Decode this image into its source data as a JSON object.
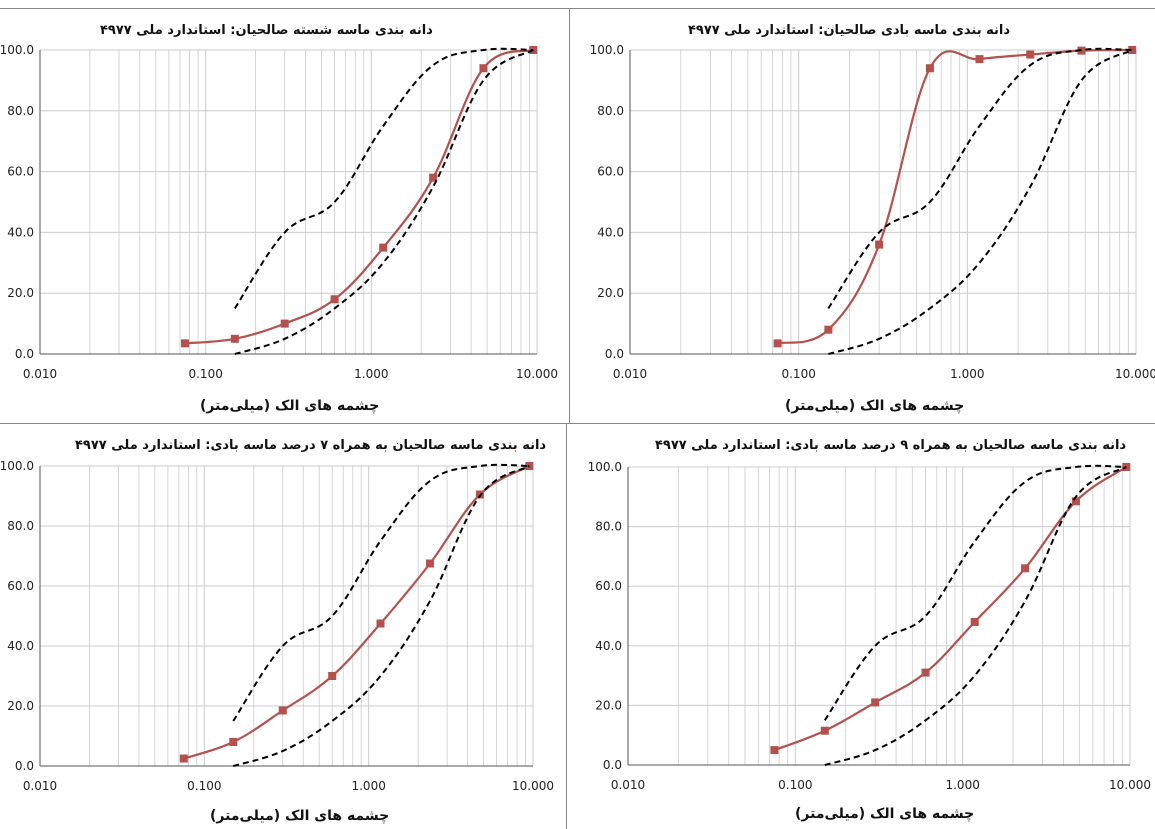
{
  "colors": {
    "grading": "#b5514c",
    "limits": "#000000",
    "grid": "#cccccc"
  },
  "chart_data": [
    {
      "type": "line",
      "title": "دانه بندی ماسه  شسته صالحیان: استاندارد ملی ۴۹۷۷",
      "xlabel": "چشمه های الک (میلی‌متر)",
      "ylabel": "",
      "xscale": "log",
      "xlim": [
        0.01,
        10
      ],
      "ylim": [
        0,
        100
      ],
      "xticks": [
        "0.010",
        "0.100",
        "1.000",
        "10.000"
      ],
      "yticks": [
        "0.0",
        "20.0",
        "40.0",
        "60.0",
        "80.0",
        "100.0"
      ],
      "series": [
        {
          "x": [
            0.075,
            0.15,
            0.3,
            0.6,
            1.18,
            2.36,
            4.75,
            9.5
          ],
          "y": [
            3.5,
            5,
            10,
            18,
            35,
            58,
            94,
            100
          ]
        },
        {
          "x": [
            0.15,
            0.3,
            0.6,
            1.18,
            2.36,
            4.75,
            9.5
          ],
          "y": [
            15,
            40,
            50,
            75,
            95,
            100,
            100
          ],
          "style": "dashed"
        },
        {
          "x": [
            0.15,
            0.3,
            0.6,
            1.18,
            2.36,
            4.75,
            9.5
          ],
          "y": [
            0,
            5,
            15,
            30,
            55,
            90,
            100
          ],
          "style": "dashed"
        }
      ]
    },
    {
      "type": "line",
      "title": "دانه بندی ماسه  بادی صالحیان: استاندارد ملی ۴۹۷۷",
      "xlabel": "چشمه های الک (میلی‌متر)",
      "ylabel": "",
      "xscale": "log",
      "xlim": [
        0.01,
        10
      ],
      "ylim": [
        0,
        100
      ],
      "xticks": [
        "0.010",
        "0.100",
        "1.000",
        "10.000"
      ],
      "yticks": [
        "0.0",
        "20.0",
        "40.0",
        "60.0",
        "80.0",
        "100.0"
      ],
      "series": [
        {
          "x": [
            0.075,
            0.15,
            0.3,
            0.6,
            1.18,
            2.36,
            4.75,
            9.5
          ],
          "y": [
            3.5,
            8,
            36,
            94,
            97,
            98.5,
            99.8,
            100
          ]
        },
        {
          "x": [
            0.15,
            0.3,
            0.6,
            1.18,
            2.36,
            4.75,
            9.5
          ],
          "y": [
            15,
            40,
            50,
            75,
            95,
            100,
            100
          ],
          "style": "dashed"
        },
        {
          "x": [
            0.15,
            0.3,
            0.6,
            1.18,
            2.36,
            4.75,
            9.5
          ],
          "y": [
            0,
            5,
            15,
            30,
            55,
            90,
            100
          ],
          "style": "dashed"
        }
      ]
    },
    {
      "type": "line",
      "title": "دانه بندی ماسه صالحیان به همراه ۷ درصد ماسه بادی: استاندارد ملی ۴۹۷۷",
      "xlabel": "چشمه های الک (میلی‌متر)",
      "ylabel": "",
      "xscale": "log",
      "xlim": [
        0.01,
        10
      ],
      "ylim": [
        0,
        100
      ],
      "xticks": [
        "0.010",
        "0.100",
        "1.000",
        "10.000"
      ],
      "yticks": [
        "0.0",
        "20.0",
        "40.0",
        "60.0",
        "80.0",
        "100.0"
      ],
      "series": [
        {
          "x": [
            0.075,
            0.15,
            0.3,
            0.6,
            1.18,
            2.36,
            4.75,
            9.5
          ],
          "y": [
            2.5,
            8,
            18.5,
            30,
            47.5,
            67.5,
            90.5,
            100
          ]
        },
        {
          "x": [
            0.15,
            0.3,
            0.6,
            1.18,
            2.36,
            4.75,
            9.5
          ],
          "y": [
            15,
            40,
            50,
            75,
            95,
            100,
            100
          ],
          "style": "dashed"
        },
        {
          "x": [
            0.15,
            0.3,
            0.6,
            1.18,
            2.36,
            4.75,
            9.5
          ],
          "y": [
            0,
            5,
            15,
            30,
            55,
            90,
            100
          ],
          "style": "dashed"
        }
      ]
    },
    {
      "type": "line",
      "title": "دانه بندی ماسه صالحیان به همراه ۹ درصد ماسه بادی: استاندارد ملی ۴۹۷۷",
      "xlabel": "چشمه های الک (میلی‌متر)",
      "ylabel": "",
      "xscale": "log",
      "xlim": [
        0.01,
        10
      ],
      "ylim": [
        0,
        100
      ],
      "xticks": [
        "0.010",
        "0.100",
        "1.000",
        "10.000"
      ],
      "yticks": [
        "0.0",
        "20.0",
        "40.0",
        "60.0",
        "80.0",
        "100.0"
      ],
      "series": [
        {
          "x": [
            0.075,
            0.15,
            0.3,
            0.6,
            1.18,
            2.36,
            4.75,
            9.5
          ],
          "y": [
            5,
            11.5,
            21,
            31,
            48,
            66,
            88.5,
            100
          ]
        },
        {
          "x": [
            0.15,
            0.3,
            0.6,
            1.18,
            2.36,
            4.75,
            9.5
          ],
          "y": [
            15,
            40,
            50,
            75,
            95,
            100,
            100
          ],
          "style": "dashed"
        },
        {
          "x": [
            0.15,
            0.3,
            0.6,
            1.18,
            2.36,
            4.75,
            9.5
          ],
          "y": [
            0,
            5,
            15,
            30,
            55,
            90,
            100
          ],
          "style": "dashed"
        }
      ]
    }
  ]
}
